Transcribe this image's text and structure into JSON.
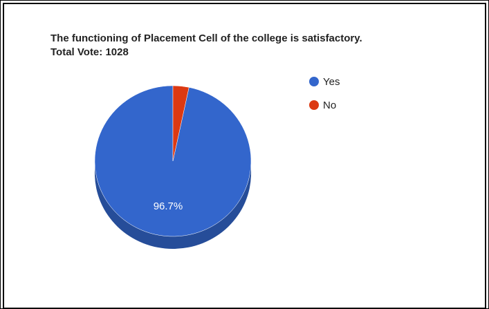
{
  "chart_data": {
    "type": "pie",
    "title": "The functioning of Placement Cell of the college is satisfactory.",
    "subtitle": "Total Vote: 1028",
    "categories": [
      "Yes",
      "No"
    ],
    "values": [
      96.7,
      3.3
    ],
    "unit": "%",
    "colors": [
      "#3366cc",
      "#dc3912"
    ],
    "side_colors": [
      "#264d99",
      "#a52b0e"
    ],
    "data_labels": [
      "96.7%",
      ""
    ],
    "legend": {
      "position": "top-right",
      "entries": [
        "Yes",
        "No"
      ]
    },
    "style": "3d"
  }
}
